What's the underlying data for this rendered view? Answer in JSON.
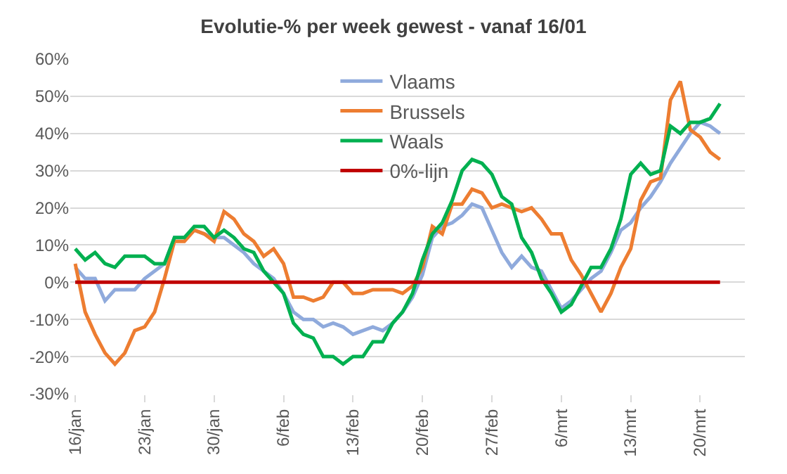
{
  "chart_data": {
    "type": "line",
    "title": "Evolutie-% per week gewest - vanaf 16/01",
    "categories": [
      "16/jan",
      null,
      null,
      null,
      null,
      null,
      null,
      "23/jan",
      null,
      null,
      null,
      null,
      null,
      null,
      "30/jan",
      null,
      null,
      null,
      null,
      null,
      null,
      "6/feb",
      null,
      null,
      null,
      null,
      null,
      null,
      "13/feb",
      null,
      null,
      null,
      null,
      null,
      null,
      "20/feb",
      null,
      null,
      null,
      null,
      null,
      null,
      "27/feb",
      null,
      null,
      null,
      null,
      null,
      null,
      "6/mrt",
      null,
      null,
      null,
      null,
      null,
      null,
      "13/mrt",
      null,
      null,
      null,
      null,
      null,
      null,
      "20/mrt",
      null,
      null
    ],
    "series": [
      {
        "name": "Vlaams",
        "color": "#8faadc",
        "values": [
          4,
          1,
          1,
          -5,
          -2,
          -2,
          -2,
          1,
          3,
          5,
          12,
          12,
          14,
          13,
          12,
          12,
          10,
          8,
          5,
          3,
          1,
          -3,
          -8,
          -10,
          -10,
          -12,
          -11,
          -12,
          -14,
          -13,
          -12,
          -13,
          -11,
          -8,
          -4,
          2,
          12,
          15,
          16,
          18,
          21,
          20,
          14,
          8,
          4,
          7,
          4,
          3,
          -2,
          -7,
          -5,
          -2,
          1,
          3,
          8,
          14,
          16,
          20,
          23,
          27,
          32,
          36,
          40,
          43,
          42,
          40
        ]
      },
      {
        "name": "Brussels",
        "color": "#ed7d31",
        "values": [
          5,
          -8,
          -14,
          -19,
          -22,
          -19,
          -13,
          -12,
          -8,
          1,
          11,
          11,
          14,
          13,
          11,
          19,
          17,
          13,
          11,
          7,
          9,
          5,
          -4,
          -4,
          -5,
          -4,
          0,
          0,
          -3,
          -3,
          -2,
          -2,
          -2,
          -3,
          -1,
          4,
          15,
          13,
          21,
          21,
          25,
          24,
          20,
          21,
          20,
          19,
          20,
          17,
          13,
          13,
          6,
          2,
          -3,
          -8,
          -3,
          4,
          9,
          22,
          27,
          28,
          49,
          54,
          41,
          39,
          35,
          33
        ]
      },
      {
        "name": "Waals",
        "color": "#00b050",
        "values": [
          9,
          6,
          8,
          5,
          4,
          7,
          7,
          7,
          5,
          5,
          12,
          12,
          15,
          15,
          12,
          14,
          12,
          9,
          8,
          3,
          0,
          -3,
          -11,
          -14,
          -15,
          -20,
          -20,
          -22,
          -20,
          -20,
          -16,
          -16,
          -11,
          -8,
          -3,
          6,
          13,
          16,
          22,
          30,
          33,
          32,
          29,
          23,
          21,
          12,
          8,
          1,
          -3,
          -8,
          -6,
          -1,
          4,
          4,
          9,
          17,
          29,
          32,
          29,
          30,
          42,
          40,
          43,
          43,
          44,
          48
        ]
      },
      {
        "name": "0%-lijn",
        "color": "#c00000",
        "values": [
          0,
          0,
          0,
          0,
          0,
          0,
          0,
          0,
          0,
          0,
          0,
          0,
          0,
          0,
          0,
          0,
          0,
          0,
          0,
          0,
          0,
          0,
          0,
          0,
          0,
          0,
          0,
          0,
          0,
          0,
          0,
          0,
          0,
          0,
          0,
          0,
          0,
          0,
          0,
          0,
          0,
          0,
          0,
          0,
          0,
          0,
          0,
          0,
          0,
          0,
          0,
          0,
          0,
          0,
          0,
          0,
          0,
          0,
          0,
          0,
          0,
          0,
          0,
          0,
          0,
          0
        ]
      }
    ],
    "ylim": [
      -30,
      60
    ],
    "yticks": [
      {
        "value": -30,
        "label": "-30%"
      },
      {
        "value": -20,
        "label": "-20%"
      },
      {
        "value": -10,
        "label": "-10%"
      },
      {
        "value": 0,
        "label": "0%"
      },
      {
        "value": 10,
        "label": "10%"
      },
      {
        "value": 20,
        "label": "20%"
      },
      {
        "value": 30,
        "label": "30%"
      },
      {
        "value": 40,
        "label": "40%"
      },
      {
        "value": 50,
        "label": "50%"
      },
      {
        "value": 60,
        "label": "60%"
      }
    ],
    "grid": "y",
    "legend": "top",
    "marker": "none",
    "line_style": "solid"
  }
}
